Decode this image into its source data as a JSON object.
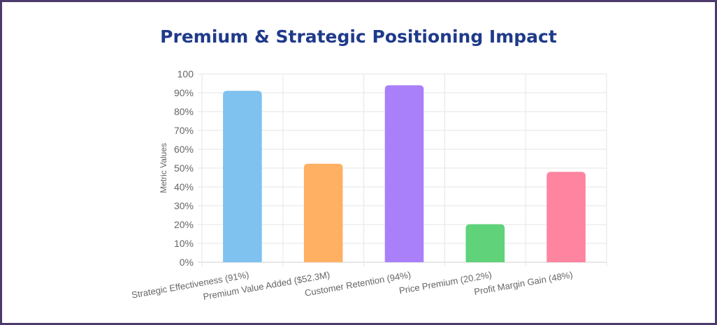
{
  "chart_data": {
    "type": "bar",
    "title": "Premium & Strategic Positioning Impact",
    "ylabel": "Metric Values",
    "xlabel": "",
    "ylim": [
      0,
      100
    ],
    "y_ticks": [
      "0%",
      "10%",
      "20%",
      "30%",
      "40%",
      "50%",
      "60%",
      "70%",
      "80%",
      "90%",
      "100"
    ],
    "categories": [
      "Strategic Effectiveness (91%)",
      "Premium Value Added ($52.3M)",
      "Customer Retention (94%)",
      "Price Premium (20.2%)",
      "Profit Margin Gain (48%)"
    ],
    "values": [
      91,
      52.3,
      94,
      20.2,
      48
    ],
    "colors": [
      "#7fc1ef",
      "#ffb062",
      "#a980fa",
      "#5fd27a",
      "#ff84a0"
    ],
    "grid": true,
    "legend": "none"
  }
}
